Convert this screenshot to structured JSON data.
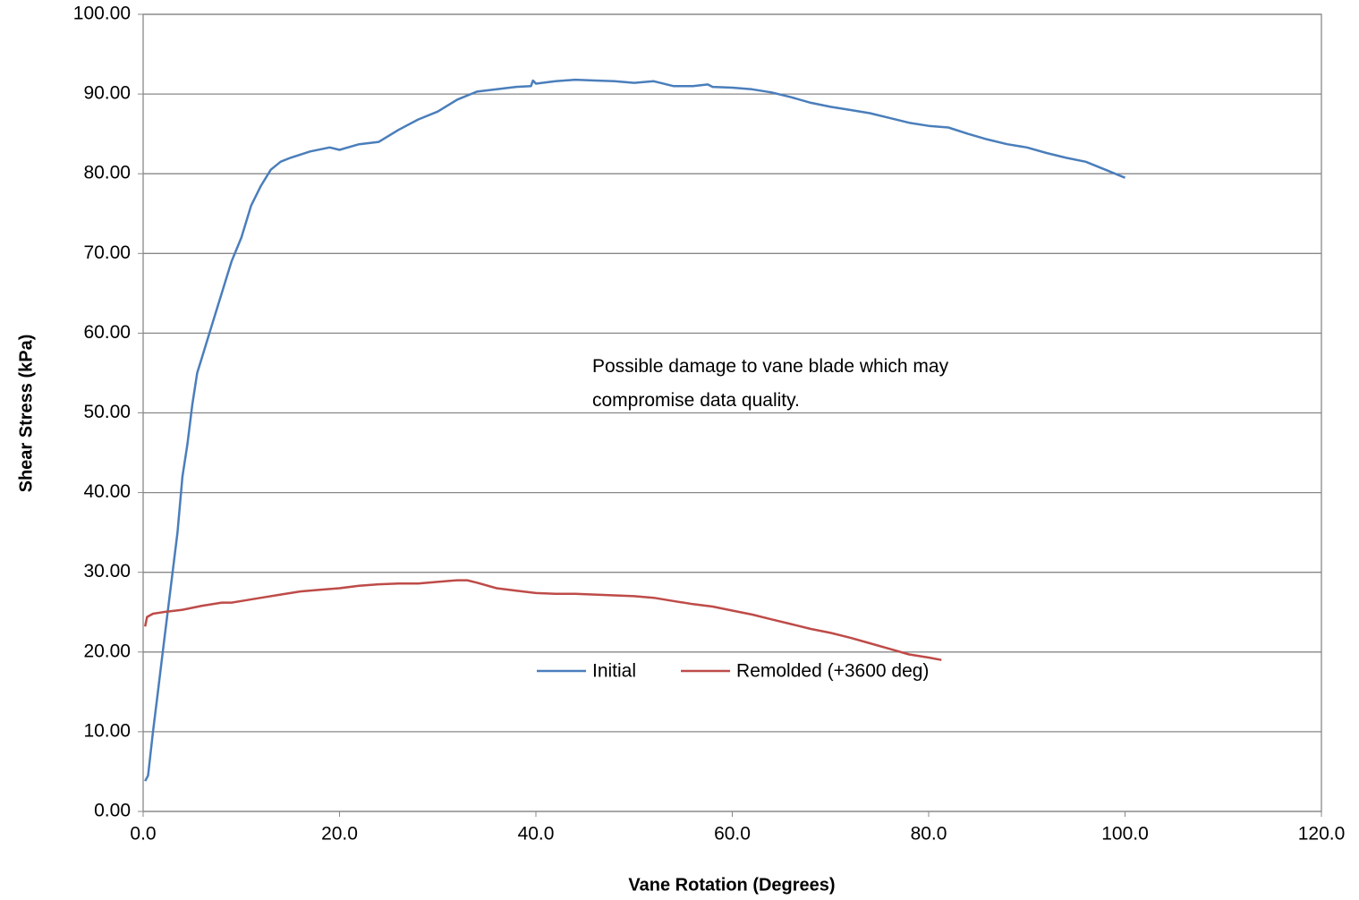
{
  "chart_data": {
    "type": "line",
    "annotation": "Possible damage to vane blade which may compromise data quality.",
    "x_label": "Vane Rotation (Degrees)",
    "y_label": "Shear Stress (kPa)",
    "xlim": [
      0,
      120
    ],
    "ylim": [
      0,
      100
    ],
    "xticks": [
      {
        "value": 0,
        "label": "0.0"
      },
      {
        "value": 20,
        "label": "20.0"
      },
      {
        "value": 40,
        "label": "40.0"
      },
      {
        "value": 60,
        "label": "60.0"
      },
      {
        "value": 80,
        "label": "80.0"
      },
      {
        "value": 100,
        "label": "100.0"
      },
      {
        "value": 120,
        "label": "120.0"
      }
    ],
    "yticks": [
      {
        "value": 0,
        "label": "0.00"
      },
      {
        "value": 10,
        "label": "10.00"
      },
      {
        "value": 20,
        "label": "20.00"
      },
      {
        "value": 30,
        "label": "30.00"
      },
      {
        "value": 40,
        "label": "40.00"
      },
      {
        "value": 50,
        "label": "50.00"
      },
      {
        "value": 60,
        "label": "60.00"
      },
      {
        "value": 70,
        "label": "70.00"
      },
      {
        "value": 80,
        "label": "80.00"
      },
      {
        "value": 90,
        "label": "90.00"
      },
      {
        "value": 100,
        "label": "100.00"
      }
    ],
    "grid": true,
    "series": [
      {
        "name": "Initial",
        "color": "#4a7ebb",
        "x": [
          0.2,
          0.5,
          1,
          1.5,
          2,
          2.5,
          3,
          3.5,
          4,
          4.5,
          5,
          5.5,
          6,
          7,
          8,
          9,
          10,
          11,
          12,
          13,
          14,
          15,
          17,
          19,
          20,
          22,
          24,
          26,
          28,
          30,
          32,
          34,
          36,
          38,
          39.5,
          39.7,
          40,
          42,
          44,
          46,
          48,
          50,
          52,
          54,
          56,
          57.5,
          58,
          60,
          62,
          64,
          66,
          68,
          70,
          72,
          74,
          76,
          78,
          80,
          82,
          84,
          86,
          88,
          90,
          92,
          94,
          96,
          98,
          100
        ],
        "values": [
          3.8,
          4.5,
          10,
          15,
          20,
          25,
          30,
          35,
          42,
          46,
          51,
          55,
          57,
          61,
          65,
          69,
          72,
          76,
          78.5,
          80.5,
          81.5,
          82,
          82.8,
          83.3,
          83,
          83.7,
          84,
          85.5,
          86.8,
          87.8,
          89.3,
          90.3,
          90.6,
          90.9,
          91,
          91.7,
          91.3,
          91.6,
          91.8,
          91.7,
          91.6,
          91.4,
          91.6,
          91,
          91,
          91.2,
          90.9,
          90.8,
          90.6,
          90.2,
          89.6,
          88.9,
          88.4,
          88,
          87.6,
          87,
          86.4,
          86,
          85.8,
          85,
          84.3,
          83.7,
          83.3,
          82.6,
          82,
          81.5,
          80.5,
          79.5
        ]
      },
      {
        "name": "Remolded (+3600 deg)",
        "color": "#be4b48",
        "x": [
          0.2,
          0.4,
          1,
          2,
          4,
          6,
          8,
          9,
          10,
          12,
          14,
          16,
          18,
          20,
          22,
          24,
          26,
          28,
          30,
          32,
          33,
          34,
          36,
          38,
          40,
          42,
          44,
          46,
          48,
          50,
          52,
          54,
          56,
          58,
          60,
          62,
          64,
          66,
          68,
          70,
          72,
          74,
          76,
          78,
          80,
          81.3
        ],
        "values": [
          23.2,
          24.4,
          24.8,
          25,
          25.3,
          25.8,
          26.2,
          26.2,
          26.4,
          26.8,
          27.2,
          27.6,
          27.8,
          28,
          28.3,
          28.5,
          28.6,
          28.6,
          28.8,
          29,
          29,
          28.7,
          28,
          27.7,
          27.4,
          27.3,
          27.3,
          27.2,
          27.1,
          27,
          26.8,
          26.4,
          26,
          25.7,
          25.2,
          24.7,
          24.1,
          23.5,
          22.9,
          22.4,
          21.8,
          21.1,
          20.4,
          19.7,
          19.3,
          19
        ]
      }
    ]
  }
}
